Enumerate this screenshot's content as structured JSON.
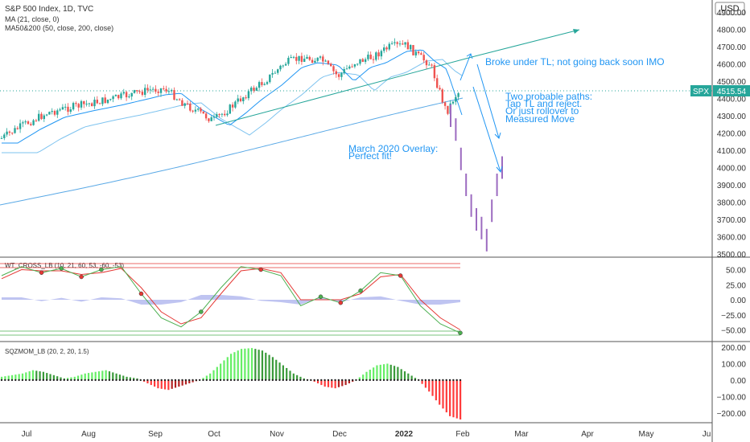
{
  "header": {
    "title": "S&P 500 Index, 1D, TVC",
    "indicator_1": "MA (21, close, 0)",
    "indicator_2": "MA50&200 (50, close, 200, close)",
    "currency": "USD"
  },
  "price_pane": {
    "symbol": "SPX",
    "last_price": "4515.54",
    "y_ticks": [
      "4900.00",
      "4800.00",
      "4700.00",
      "4600.00",
      "4500.00",
      "4400.00",
      "4300.00",
      "4200.00",
      "4100.00",
      "4000.00",
      "3900.00",
      "3800.00",
      "3700.00",
      "3600.00",
      "3500.00"
    ],
    "annotations": {
      "tl_note": "Broke under TL; not going back soon IMO",
      "paths_1": "Two probable paths:",
      "paths_2": "Tap TL and reject.",
      "paths_3": "Or just rollover to",
      "paths_4": "Measured Move",
      "overlay_1": "March 2020 Overlay:",
      "overlay_2": "Perfect fit!"
    }
  },
  "wt_pane": {
    "label": "WT_CROSS_LB (10, 21, 60, 53, -60, -53)",
    "y_ticks": [
      "50.00",
      "25.00",
      "0.00",
      "−25.00",
      "−50.00"
    ]
  },
  "sqz_pane": {
    "label": "SQZMOM_LB (20, 2, 20, 1.5)",
    "y_ticks": [
      "200.00",
      "100.00",
      "0.00",
      "−100.00",
      "−200.00"
    ]
  },
  "x_axis": {
    "ticks": [
      "Jul",
      "Aug",
      "Sep",
      "Oct",
      "Nov",
      "Dec",
      "2022",
      "Feb",
      "Mar",
      "Apr",
      "May",
      "Ju"
    ]
  },
  "colors": {
    "up": "#26a69a",
    "down": "#ef5350",
    "overlay": "#9c6bc0",
    "ma21": "#2196f3",
    "ma_long": "#5aa9e6",
    "annotation": "#2196f3",
    "wt_green": "#4caf50",
    "wt_red": "#e53935",
    "mom_bright_green": "#66ee66",
    "mom_dark_green": "#3a9a3a",
    "mom_bright_red": "#ff3b3b",
    "mom_dark_red": "#b22222"
  },
  "chart_data": [
    {
      "type": "line",
      "title": "S&P 500 Index, 1D, TVC",
      "ylim": [
        3500,
        4900
      ],
      "x": [
        "Jul",
        "Aug",
        "Sep",
        "Oct",
        "Nov",
        "Dec",
        "2022",
        "Feb"
      ],
      "series": [
        {
          "name": "S&P 500 Index",
          "values": [
            4320,
            4420,
            4530,
            4300,
            4600,
            4560,
            4790,
            4515.54
          ]
        },
        {
          "name": "MA (21, close, 0)",
          "values": [
            4260,
            4360,
            4480,
            4420,
            4520,
            4620,
            4710,
            4590
          ]
        },
        {
          "name": "MA50&200 (50, close, 200, close)",
          "values": [
            3800,
            3960,
            4110,
            4230,
            4320,
            4380,
            4440,
            4480
          ]
        }
      ],
      "overlay_values": [
        4300,
        4220,
        4050,
        3900,
        3780,
        3700,
        3650,
        3580,
        3750,
        3900,
        4000
      ],
      "last_value": 4515.54
    },
    {
      "type": "line",
      "title": "WT_CROSS_LB (10, 21, 60, 53, -60, -53)",
      "ylim": [
        -60,
        60
      ],
      "series": [
        {
          "name": "WT1",
          "values": [
            40,
            55,
            45,
            52,
            38,
            50,
            55,
            10,
            -30,
            -45,
            -20,
            20,
            55,
            50,
            40,
            -10,
            5,
            -5,
            15,
            45,
            40,
            -10,
            -40,
            -55
          ]
        },
        {
          "name": "WT2",
          "values": [
            35,
            50,
            48,
            48,
            42,
            45,
            52,
            20,
            -20,
            -40,
            -30,
            10,
            48,
            52,
            45,
            0,
            0,
            0,
            10,
            38,
            42,
            0,
            -30,
            -50
          ]
        }
      ]
    },
    {
      "type": "bar",
      "title": "SQZMOM_LB (20, 2, 20, 1.5)",
      "ylim": [
        -250,
        220
      ],
      "values": [
        20,
        30,
        40,
        60,
        50,
        30,
        10,
        20,
        40,
        50,
        60,
        40,
        20,
        10,
        -20,
        -50,
        -60,
        -40,
        -20,
        0,
        40,
        100,
        160,
        190,
        195,
        180,
        140,
        90,
        40,
        10,
        -10,
        -40,
        -50,
        -30,
        0,
        50,
        90,
        100,
        80,
        40,
        0,
        -70,
        -150,
        -220,
        -240
      ]
    }
  ]
}
